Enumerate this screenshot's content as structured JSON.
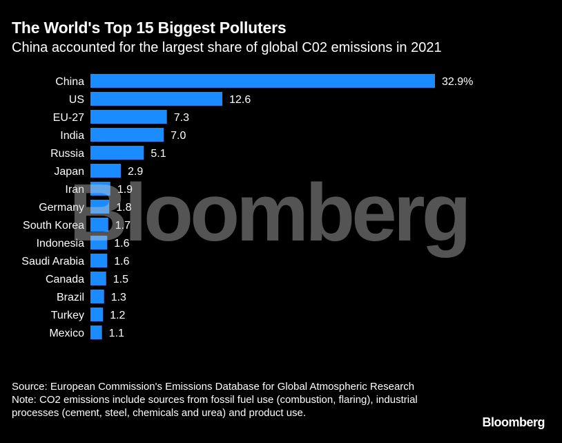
{
  "header": {
    "title": "The World's Top 15 Biggest Polluters",
    "subtitle": "China accounted for the largest share of global C02 emissions in 2021"
  },
  "chart_data": {
    "type": "bar",
    "orientation": "horizontal",
    "categories": [
      "China",
      "US",
      "EU-27",
      "India",
      "Russia",
      "Japan",
      "Iran",
      "Germany",
      "South Korea",
      "Indonesia",
      "Saudi Arabia",
      "Canada",
      "Brazil",
      "Turkey",
      "Mexico"
    ],
    "values": [
      32.9,
      12.6,
      7.3,
      7.0,
      5.1,
      2.9,
      1.9,
      1.8,
      1.7,
      1.6,
      1.6,
      1.5,
      1.3,
      1.2,
      1.1
    ],
    "value_labels": [
      "32.9%",
      "12.6",
      "7.3",
      "7.0",
      "5.1",
      "2.9",
      "1.9",
      "1.8",
      "1.7",
      "1.6",
      "1.6",
      "1.5",
      "1.3",
      "1.2",
      "1.1"
    ],
    "title": "The World's Top 15 Biggest Polluters",
    "subtitle": "China accounted for the largest share of global C02 emissions in 2021",
    "xlabel": "",
    "ylabel": "",
    "xlim": [
      0,
      32.9
    ],
    "grid": false,
    "legend": "none",
    "bar_color": "#1a8cff"
  },
  "watermark": "Bloomberg",
  "footer": {
    "source_line": "Source: European Commission's Emissions Database for Global Atmospheric Research",
    "note_line": "Note: CO2 emissions include sources from fossil fuel use (combustion, flaring), industrial processes (cement, steel, chemicals and urea) and product use.",
    "brand": "Bloomberg"
  },
  "colors": {
    "background": "#000000",
    "text": "#ffffff",
    "bar": "#1a8cff"
  }
}
